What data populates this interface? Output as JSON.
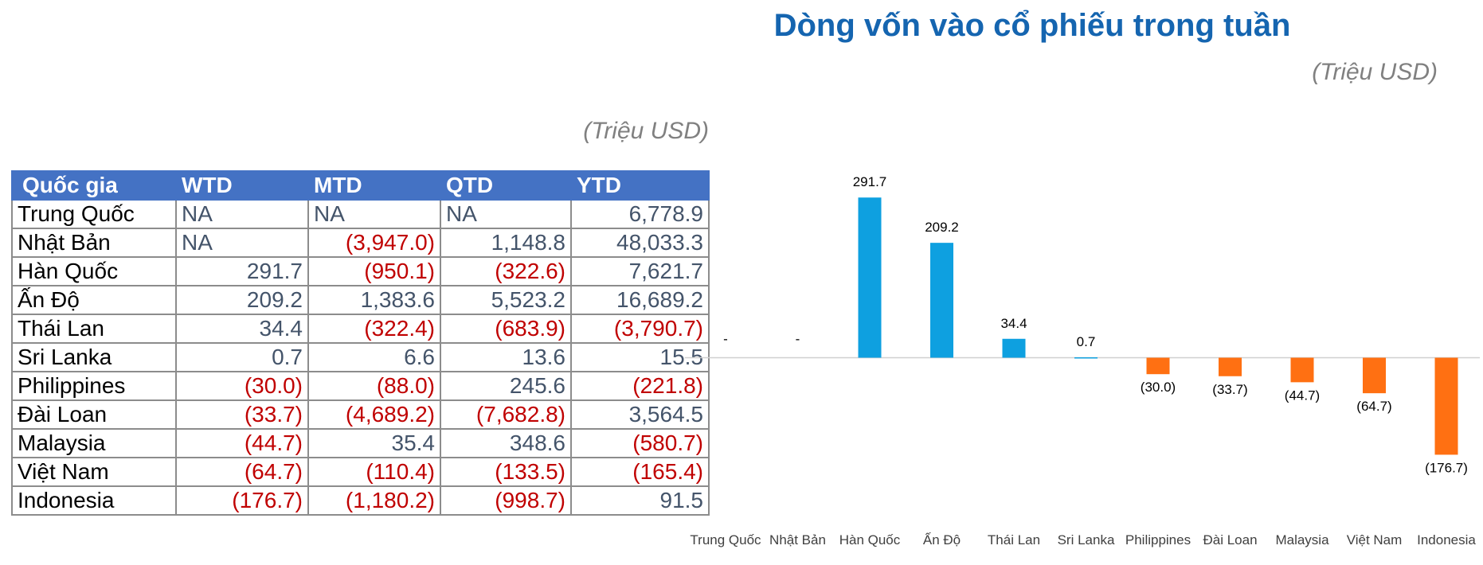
{
  "table": {
    "unit": "(Triệu USD)",
    "header": [
      "Quốc gia",
      "WTD",
      "MTD",
      "QTD",
      "YTD"
    ],
    "rows": [
      [
        "Trung Quốc",
        "NA",
        "NA",
        "NA",
        "6,778.9"
      ],
      [
        "Nhật Bản",
        "NA",
        "(3,947.0)",
        "1,148.8",
        "48,033.3"
      ],
      [
        "Hàn Quốc",
        "291.7",
        "(950.1)",
        "(322.6)",
        "7,621.7"
      ],
      [
        "Ấn Độ",
        "209.2",
        "1,383.6",
        "5,523.2",
        "16,689.2"
      ],
      [
        "Thái Lan",
        "34.4",
        "(322.4)",
        "(683.9)",
        "(3,790.7)"
      ],
      [
        "Sri Lanka",
        "0.7",
        "6.6",
        "13.6",
        "15.5"
      ],
      [
        "Philippines",
        "(30.0)",
        "(88.0)",
        "245.6",
        "(221.8)"
      ],
      [
        "Đài Loan",
        "(33.7)",
        "(4,689.2)",
        "(7,682.8)",
        "3,564.5"
      ],
      [
        "Malaysia",
        "(44.7)",
        "35.4",
        "348.6",
        "(580.7)"
      ],
      [
        "Việt Nam",
        "(64.7)",
        "(110.4)",
        "(133.5)",
        "(165.4)"
      ],
      [
        "Indonesia",
        "(176.7)",
        "(1,180.2)",
        "(998.7)",
        "91.5"
      ]
    ]
  },
  "chart_data": {
    "type": "bar",
    "title": "Dòng vốn vào cổ phiếu trong tuần",
    "subtitle": "(Triệu USD)",
    "categories": [
      "Trung Quốc",
      "Nhật Bản",
      "Hàn Quốc",
      "Ấn Độ",
      "Thái Lan",
      "Sri Lanka",
      "Philippines",
      "Đài Loan",
      "Malaysia",
      "Việt Nam",
      "Indonesia"
    ],
    "values": [
      null,
      null,
      291.7,
      209.2,
      34.4,
      0.7,
      -30.0,
      -33.7,
      -44.7,
      -64.7,
      -176.7
    ],
    "value_labels": [
      "-",
      "-",
      "291.7",
      "209.2",
      "34.4",
      "0.7",
      "(30.0)",
      "(33.7)",
      "(44.7)",
      "(64.7)",
      "(176.7)"
    ],
    "colors": {
      "positive": "#0ea0e0",
      "negative": "#ff7012"
    },
    "ylim": [
      -250,
      350
    ]
  }
}
